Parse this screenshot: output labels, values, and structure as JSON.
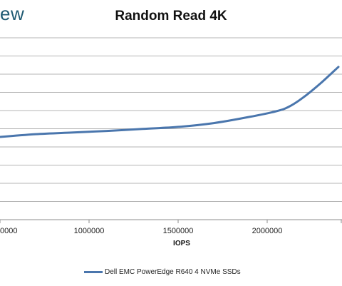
{
  "brand": "ew",
  "chart_data": {
    "type": "line",
    "title": "Random Read 4K",
    "xlabel": "IOPS",
    "ylabel": "",
    "xlim": [
      500000,
      2420000
    ],
    "ylim": [
      0,
      10
    ],
    "x_ticks": [
      1000000,
      1500000,
      2000000
    ],
    "x_tick_labels": [
      "1000000",
      "1500000",
      "2000000"
    ],
    "left_edge_tick_label": "0000",
    "grid": true,
    "legend": "bottom",
    "series": [
      {
        "name": "Dell EMC PowerEdge R640 4 NVMe SSDs",
        "color": "#4a76ad",
        "x": [
          500000,
          700000,
          900000,
          1100000,
          1300000,
          1500000,
          1700000,
          1900000,
          2050000,
          2120000,
          2200000,
          2300000,
          2400000
        ],
        "y": [
          4.55,
          4.7,
          4.79,
          4.88,
          4.99,
          5.1,
          5.31,
          5.65,
          5.96,
          6.2,
          6.7,
          7.5,
          8.4
        ]
      }
    ]
  }
}
